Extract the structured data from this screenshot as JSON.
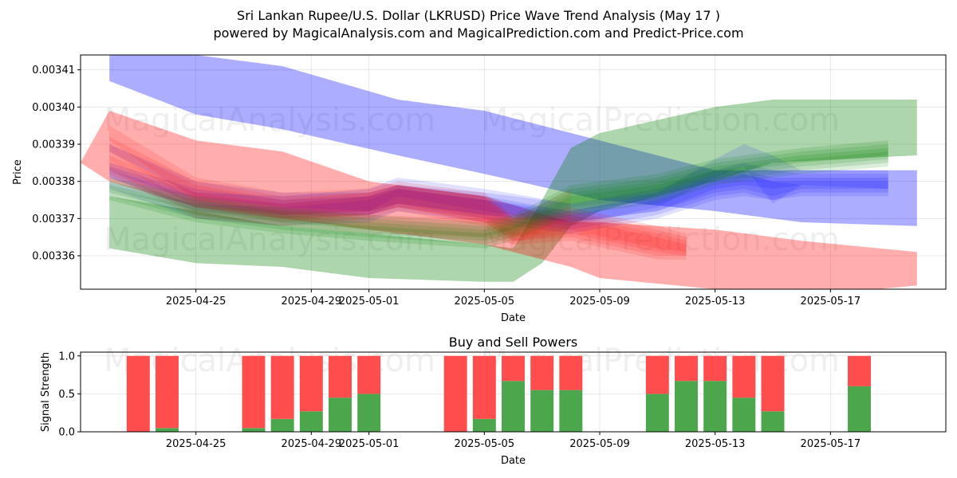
{
  "titles": {
    "line1": "Sri Lankan Rupee/U.S. Dollar (LKRUSD) Price Wave Trend Analysis (May 17 )",
    "line2": "powered by MagicalAnalysis.com and MagicalPrediction.com and Predict-Price.com"
  },
  "watermarks": [
    "MagicalAnalysis.com",
    "MagicalPrediction.com"
  ],
  "colors": {
    "blue": "#0000ff",
    "red": "#ff0000",
    "green": "#008000",
    "buy": "#4ca64c",
    "sell": "#ff4c4c"
  },
  "chart_data": [
    {
      "type": "area",
      "title": "",
      "xlabel": "Date",
      "ylabel": "Price",
      "xlim": [
        "2025-04-21",
        "2025-05-21"
      ],
      "ylim": [
        0.003351,
        0.003414
      ],
      "x_ticks": [
        "2025-04-25",
        "2025-04-29",
        "2025-05-01",
        "2025-05-05",
        "2025-05-09",
        "2025-05-13",
        "2025-05-17"
      ],
      "y_ticks": [
        "0.00336",
        "0.00337",
        "0.00338",
        "0.00339",
        "0.00340",
        "0.00341"
      ],
      "grid": true,
      "bands": [
        {
          "name": "blue-wide",
          "color": "blue",
          "opacity": 0.32,
          "x": [
            "2025-04-22",
            "2025-04-25",
            "2025-04-28",
            "2025-05-02",
            "2025-05-05",
            "2025-05-09",
            "2025-05-13",
            "2025-05-16",
            "2025-05-20"
          ],
          "upper": [
            0.003416,
            0.003414,
            0.003411,
            0.003402,
            0.003399,
            0.003391,
            0.003383,
            0.003383,
            0.003383
          ],
          "lower": [
            0.003407,
            0.003398,
            0.003394,
            0.003387,
            0.003382,
            0.003375,
            0.003372,
            0.003369,
            0.003368
          ]
        },
        {
          "name": "green-wide",
          "color": "green",
          "opacity": 0.32,
          "x": [
            "2025-04-22",
            "2025-04-25",
            "2025-04-28",
            "2025-05-01",
            "2025-05-05",
            "2025-05-06",
            "2025-05-07",
            "2025-05-08",
            "2025-05-09",
            "2025-05-13",
            "2025-05-15",
            "2025-05-20"
          ],
          "upper": [
            0.003376,
            0.003372,
            0.003368,
            0.003366,
            0.003363,
            0.003362,
            0.003375,
            0.003389,
            0.003393,
            0.0034,
            0.003402,
            0.003402
          ],
          "lower": [
            0.003362,
            0.003358,
            0.003357,
            0.003354,
            0.003353,
            0.003353,
            0.003358,
            0.003368,
            0.003372,
            0.00338,
            0.003385,
            0.003387
          ]
        },
        {
          "name": "red-wide",
          "color": "red",
          "opacity": 0.32,
          "x": [
            "2025-04-21",
            "2025-04-22",
            "2025-04-25",
            "2025-04-28",
            "2025-05-01",
            "2025-05-05",
            "2025-05-08",
            "2025-05-09",
            "2025-05-13",
            "2025-05-16",
            "2025-05-20"
          ],
          "upper": [
            0.003385,
            0.003399,
            0.003391,
            0.003388,
            0.00338,
            0.003376,
            0.003369,
            0.003369,
            0.003367,
            0.003364,
            0.003361
          ],
          "lower": [
            0.003385,
            0.00338,
            0.003373,
            0.00337,
            0.003367,
            0.003363,
            0.003357,
            0.003354,
            0.003351,
            0.003349,
            0.003352
          ]
        },
        {
          "name": "blue-inner-1",
          "color": "blue",
          "opacity": 0.12,
          "x": [
            "2025-04-22",
            "2025-04-25",
            "2025-04-28",
            "2025-05-01",
            "2025-05-02",
            "2025-05-05",
            "2025-05-08",
            "2025-05-11",
            "2025-05-13",
            "2025-05-14",
            "2025-05-15",
            "2025-05-16",
            "2025-05-19"
          ],
          "upper": [
            0.003384,
            0.003377,
            0.003376,
            0.003378,
            0.003381,
            0.003378,
            0.003374,
            0.003378,
            0.003383,
            0.003385,
            0.003383,
            0.003382,
            0.003382
          ],
          "lower": [
            0.003381,
            0.003373,
            0.003371,
            0.003372,
            0.003376,
            0.003372,
            0.003369,
            0.003372,
            0.003378,
            0.003379,
            0.003378,
            0.003379,
            0.003379
          ]
        },
        {
          "name": "blue-inner-2",
          "color": "blue",
          "opacity": 0.12,
          "x": [
            "2025-04-22",
            "2025-04-25",
            "2025-04-28",
            "2025-05-01",
            "2025-05-02",
            "2025-05-05",
            "2025-05-08",
            "2025-05-11",
            "2025-05-13",
            "2025-05-14",
            "2025-05-15",
            "2025-05-16",
            "2025-05-19"
          ],
          "upper": [
            0.00338,
            0.003374,
            0.003373,
            0.003375,
            0.003378,
            0.003375,
            0.003371,
            0.003375,
            0.00338,
            0.003382,
            0.00338,
            0.003379,
            0.003379
          ],
          "lower": [
            0.003378,
            0.00337,
            0.003368,
            0.003369,
            0.003372,
            0.003369,
            0.003366,
            0.00337,
            0.003375,
            0.003376,
            0.003375,
            0.003376,
            0.003376
          ]
        },
        {
          "name": "blue-inner-3",
          "color": "blue",
          "opacity": 0.12,
          "x": [
            "2025-04-22",
            "2025-04-25",
            "2025-04-28",
            "2025-05-01",
            "2025-05-02",
            "2025-05-05",
            "2025-05-08",
            "2025-05-11",
            "2025-05-13",
            "2025-05-14",
            "2025-05-15",
            "2025-05-16",
            "2025-05-19"
          ],
          "upper": [
            0.00339,
            0.00338,
            0.003377,
            0.003377,
            0.003379,
            0.003376,
            0.003372,
            0.003377,
            0.003386,
            0.00339,
            0.003387,
            0.003383,
            0.003383
          ],
          "lower": [
            0.003388,
            0.003376,
            0.003373,
            0.003372,
            0.003374,
            0.003371,
            0.003368,
            0.003373,
            0.003381,
            0.003384,
            0.003374,
            0.003379,
            0.003378
          ]
        },
        {
          "name": "blue-inner-4",
          "color": "blue",
          "opacity": 0.12,
          "x": [
            "2025-04-22",
            "2025-04-25",
            "2025-04-28",
            "2025-05-01",
            "2025-05-02",
            "2025-05-05",
            "2025-05-08",
            "2025-05-11",
            "2025-05-13",
            "2025-05-14",
            "2025-05-15",
            "2025-05-16",
            "2025-05-19"
          ],
          "upper": [
            0.003383,
            0.003376,
            0.003374,
            0.003376,
            0.003379,
            0.003377,
            0.003374,
            0.003377,
            0.003382,
            0.003383,
            0.003381,
            0.003381,
            0.003381
          ],
          "lower": [
            0.003381,
            0.003372,
            0.00337,
            0.003371,
            0.003374,
            0.003371,
            0.003369,
            0.003372,
            0.003377,
            0.003378,
            0.003376,
            0.003378,
            0.003378
          ]
        },
        {
          "name": "blue-inner-5",
          "color": "blue",
          "opacity": 0.12,
          "x": [
            "2025-04-22",
            "2025-04-25",
            "2025-04-28",
            "2025-05-01",
            "2025-05-02",
            "2025-05-05",
            "2025-05-08",
            "2025-05-11",
            "2025-05-13",
            "2025-05-14",
            "2025-05-15",
            "2025-05-16",
            "2025-05-19"
          ],
          "upper": [
            0.003385,
            0.003378,
            0.003375,
            0.003376,
            0.003378,
            0.003375,
            0.003372,
            0.003376,
            0.003381,
            0.003382,
            0.00338,
            0.00338,
            0.00338
          ],
          "lower": [
            0.003383,
            0.003374,
            0.003371,
            0.003371,
            0.003373,
            0.00337,
            0.003367,
            0.003371,
            0.003376,
            0.003377,
            0.003375,
            0.003377,
            0.003377
          ]
        },
        {
          "name": "red-inner-1",
          "color": "red",
          "opacity": 0.12,
          "x": [
            "2025-04-22",
            "2025-04-25",
            "2025-04-28",
            "2025-05-01",
            "2025-05-02",
            "2025-05-05",
            "2025-05-06",
            "2025-05-08",
            "2025-05-11",
            "2025-05-12"
          ],
          "upper": [
            0.003395,
            0.003381,
            0.003377,
            0.003378,
            0.00338,
            0.003377,
            0.003371,
            0.003373,
            0.003368,
            0.003366
          ],
          "lower": [
            0.003391,
            0.003375,
            0.003371,
            0.003372,
            0.003374,
            0.00337,
            0.003365,
            0.003367,
            0.003362,
            0.003361
          ]
        },
        {
          "name": "red-inner-2",
          "color": "red",
          "opacity": 0.12,
          "x": [
            "2025-04-22",
            "2025-04-25",
            "2025-04-28",
            "2025-05-01",
            "2025-05-02",
            "2025-05-05",
            "2025-05-06",
            "2025-05-08",
            "2025-05-11",
            "2025-05-12"
          ],
          "upper": [
            0.00339,
            0.003379,
            0.003375,
            0.003377,
            0.003379,
            0.003376,
            0.00337,
            0.003371,
            0.003366,
            0.003364
          ],
          "lower": [
            0.003386,
            0.003373,
            0.003369,
            0.003371,
            0.003373,
            0.003369,
            0.003364,
            0.003365,
            0.00336,
            0.00336
          ]
        },
        {
          "name": "red-inner-3",
          "color": "red",
          "opacity": 0.12,
          "x": [
            "2025-04-22",
            "2025-04-25",
            "2025-04-28",
            "2025-05-01",
            "2025-05-02",
            "2025-05-05",
            "2025-05-06",
            "2025-05-08",
            "2025-05-11",
            "2025-05-12"
          ],
          "upper": [
            0.003387,
            0.003377,
            0.003374,
            0.003376,
            0.003378,
            0.003375,
            0.003369,
            0.00337,
            0.003365,
            0.003363
          ],
          "lower": [
            0.003383,
            0.003371,
            0.003368,
            0.00337,
            0.003372,
            0.003368,
            0.003363,
            0.003364,
            0.003359,
            0.003359
          ]
        },
        {
          "name": "red-inner-4",
          "color": "red",
          "opacity": 0.12,
          "x": [
            "2025-04-22",
            "2025-04-25",
            "2025-04-28",
            "2025-05-01",
            "2025-05-02",
            "2025-05-05",
            "2025-05-06",
            "2025-05-08",
            "2025-05-11",
            "2025-05-12"
          ],
          "upper": [
            0.003392,
            0.00338,
            0.003376,
            0.003377,
            0.003379,
            0.003376,
            0.00337,
            0.003372,
            0.003367,
            0.003365
          ],
          "lower": [
            0.003388,
            0.003374,
            0.00337,
            0.003371,
            0.003373,
            0.003369,
            0.003364,
            0.003366,
            0.003361,
            0.00336
          ]
        },
        {
          "name": "olive-inner",
          "color": "red",
          "opacity": 0.1,
          "x": [
            "2025-04-22",
            "2025-04-25",
            "2025-04-28",
            "2025-05-01",
            "2025-05-05",
            "2025-05-06",
            "2025-05-07",
            "2025-05-08"
          ],
          "upper": [
            0.003386,
            0.003374,
            0.003372,
            0.003371,
            0.00337,
            0.00337,
            0.003374,
            0.003378
          ],
          "lower": [
            0.003382,
            0.00337,
            0.003368,
            0.003366,
            0.003365,
            0.003363,
            0.003367,
            0.00337
          ]
        },
        {
          "name": "green-inner-1",
          "color": "green",
          "opacity": 0.14,
          "x": [
            "2025-04-22",
            "2025-04-25",
            "2025-04-28",
            "2025-05-01",
            "2025-05-05",
            "2025-05-06",
            "2025-05-08",
            "2025-05-11",
            "2025-05-13",
            "2025-05-16",
            "2025-05-19"
          ],
          "upper": [
            0.00338,
            0.003375,
            0.003372,
            0.00337,
            0.003368,
            0.00337,
            0.003378,
            0.003381,
            0.003385,
            0.003388,
            0.00339
          ],
          "lower": [
            0.003377,
            0.003371,
            0.003368,
            0.003366,
            0.003364,
            0.003366,
            0.003373,
            0.003376,
            0.003381,
            0.003384,
            0.003386
          ]
        },
        {
          "name": "green-inner-2",
          "color": "green",
          "opacity": 0.14,
          "x": [
            "2025-04-22",
            "2025-04-25",
            "2025-04-28",
            "2025-05-01",
            "2025-05-05",
            "2025-05-06",
            "2025-05-08",
            "2025-05-11",
            "2025-05-13",
            "2025-05-16",
            "2025-05-19"
          ],
          "upper": [
            0.003379,
            0.003374,
            0.003371,
            0.003369,
            0.003367,
            0.003369,
            0.003377,
            0.00338,
            0.003384,
            0.003387,
            0.003389
          ],
          "lower": [
            0.003376,
            0.00337,
            0.003367,
            0.003365,
            0.003363,
            0.003365,
            0.003372,
            0.003375,
            0.00338,
            0.003383,
            0.003385
          ]
        },
        {
          "name": "green-inner-3",
          "color": "green",
          "opacity": 0.14,
          "x": [
            "2025-04-22",
            "2025-04-25",
            "2025-04-28",
            "2025-05-01",
            "2025-05-05",
            "2025-05-06",
            "2025-05-08",
            "2025-05-11",
            "2025-05-13",
            "2025-05-16",
            "2025-05-19"
          ],
          "upper": [
            0.003381,
            0.003376,
            0.003373,
            0.003371,
            0.003369,
            0.003371,
            0.003379,
            0.003382,
            0.003386,
            0.003389,
            0.003391
          ],
          "lower": [
            0.003378,
            0.003372,
            0.003369,
            0.003367,
            0.003365,
            0.003367,
            0.003374,
            0.003377,
            0.003382,
            0.003385,
            0.003387
          ]
        },
        {
          "name": "green-inner-4",
          "color": "green",
          "opacity": 0.14,
          "x": [
            "2025-04-22",
            "2025-04-25",
            "2025-04-28",
            "2025-05-01",
            "2025-05-05",
            "2025-05-06",
            "2025-05-08",
            "2025-05-11",
            "2025-05-13",
            "2025-05-16",
            "2025-05-19"
          ],
          "upper": [
            0.003378,
            0.003373,
            0.00337,
            0.003368,
            0.003366,
            0.003368,
            0.003376,
            0.003379,
            0.003383,
            0.003386,
            0.003388
          ],
          "lower": [
            0.003375,
            0.003369,
            0.003366,
            0.003364,
            0.003362,
            0.003364,
            0.003371,
            0.003374,
            0.003379,
            0.003382,
            0.003384
          ]
        }
      ]
    },
    {
      "type": "bar",
      "title": "Buy and Sell Powers",
      "xlabel": "Date",
      "ylabel": "Signal Strength",
      "xlim": [
        "2025-04-21",
        "2025-05-21"
      ],
      "ylim": [
        0,
        1.05
      ],
      "x_ticks": [
        "2025-04-25",
        "2025-04-29",
        "2025-05-01",
        "2025-05-05",
        "2025-05-09",
        "2025-05-13",
        "2025-05-17"
      ],
      "y_ticks": [
        "0.0",
        "0.5",
        "1.0"
      ],
      "categories": [
        "2025-04-23",
        "2025-04-24",
        "2025-04-27",
        "2025-04-28",
        "2025-04-29",
        "2025-04-30",
        "2025-05-01",
        "2025-05-04",
        "2025-05-05",
        "2025-05-06",
        "2025-05-07",
        "2025-05-08",
        "2025-05-11",
        "2025-05-12",
        "2025-05-13",
        "2025-05-14",
        "2025-05-15",
        "2025-05-18"
      ],
      "series": [
        {
          "name": "Buy",
          "color": "buy",
          "values": [
            0.0,
            0.05,
            0.05,
            0.17,
            0.27,
            0.45,
            0.5,
            0.0,
            0.17,
            0.67,
            0.55,
            0.55,
            0.5,
            0.67,
            0.67,
            0.45,
            0.27,
            0.6
          ]
        },
        {
          "name": "Sell",
          "color": "sell",
          "values": [
            1.0,
            0.95,
            0.95,
            0.83,
            0.73,
            0.55,
            0.5,
            1.0,
            0.83,
            0.33,
            0.45,
            0.45,
            0.5,
            0.33,
            0.33,
            0.55,
            0.73,
            0.4
          ]
        }
      ]
    }
  ]
}
